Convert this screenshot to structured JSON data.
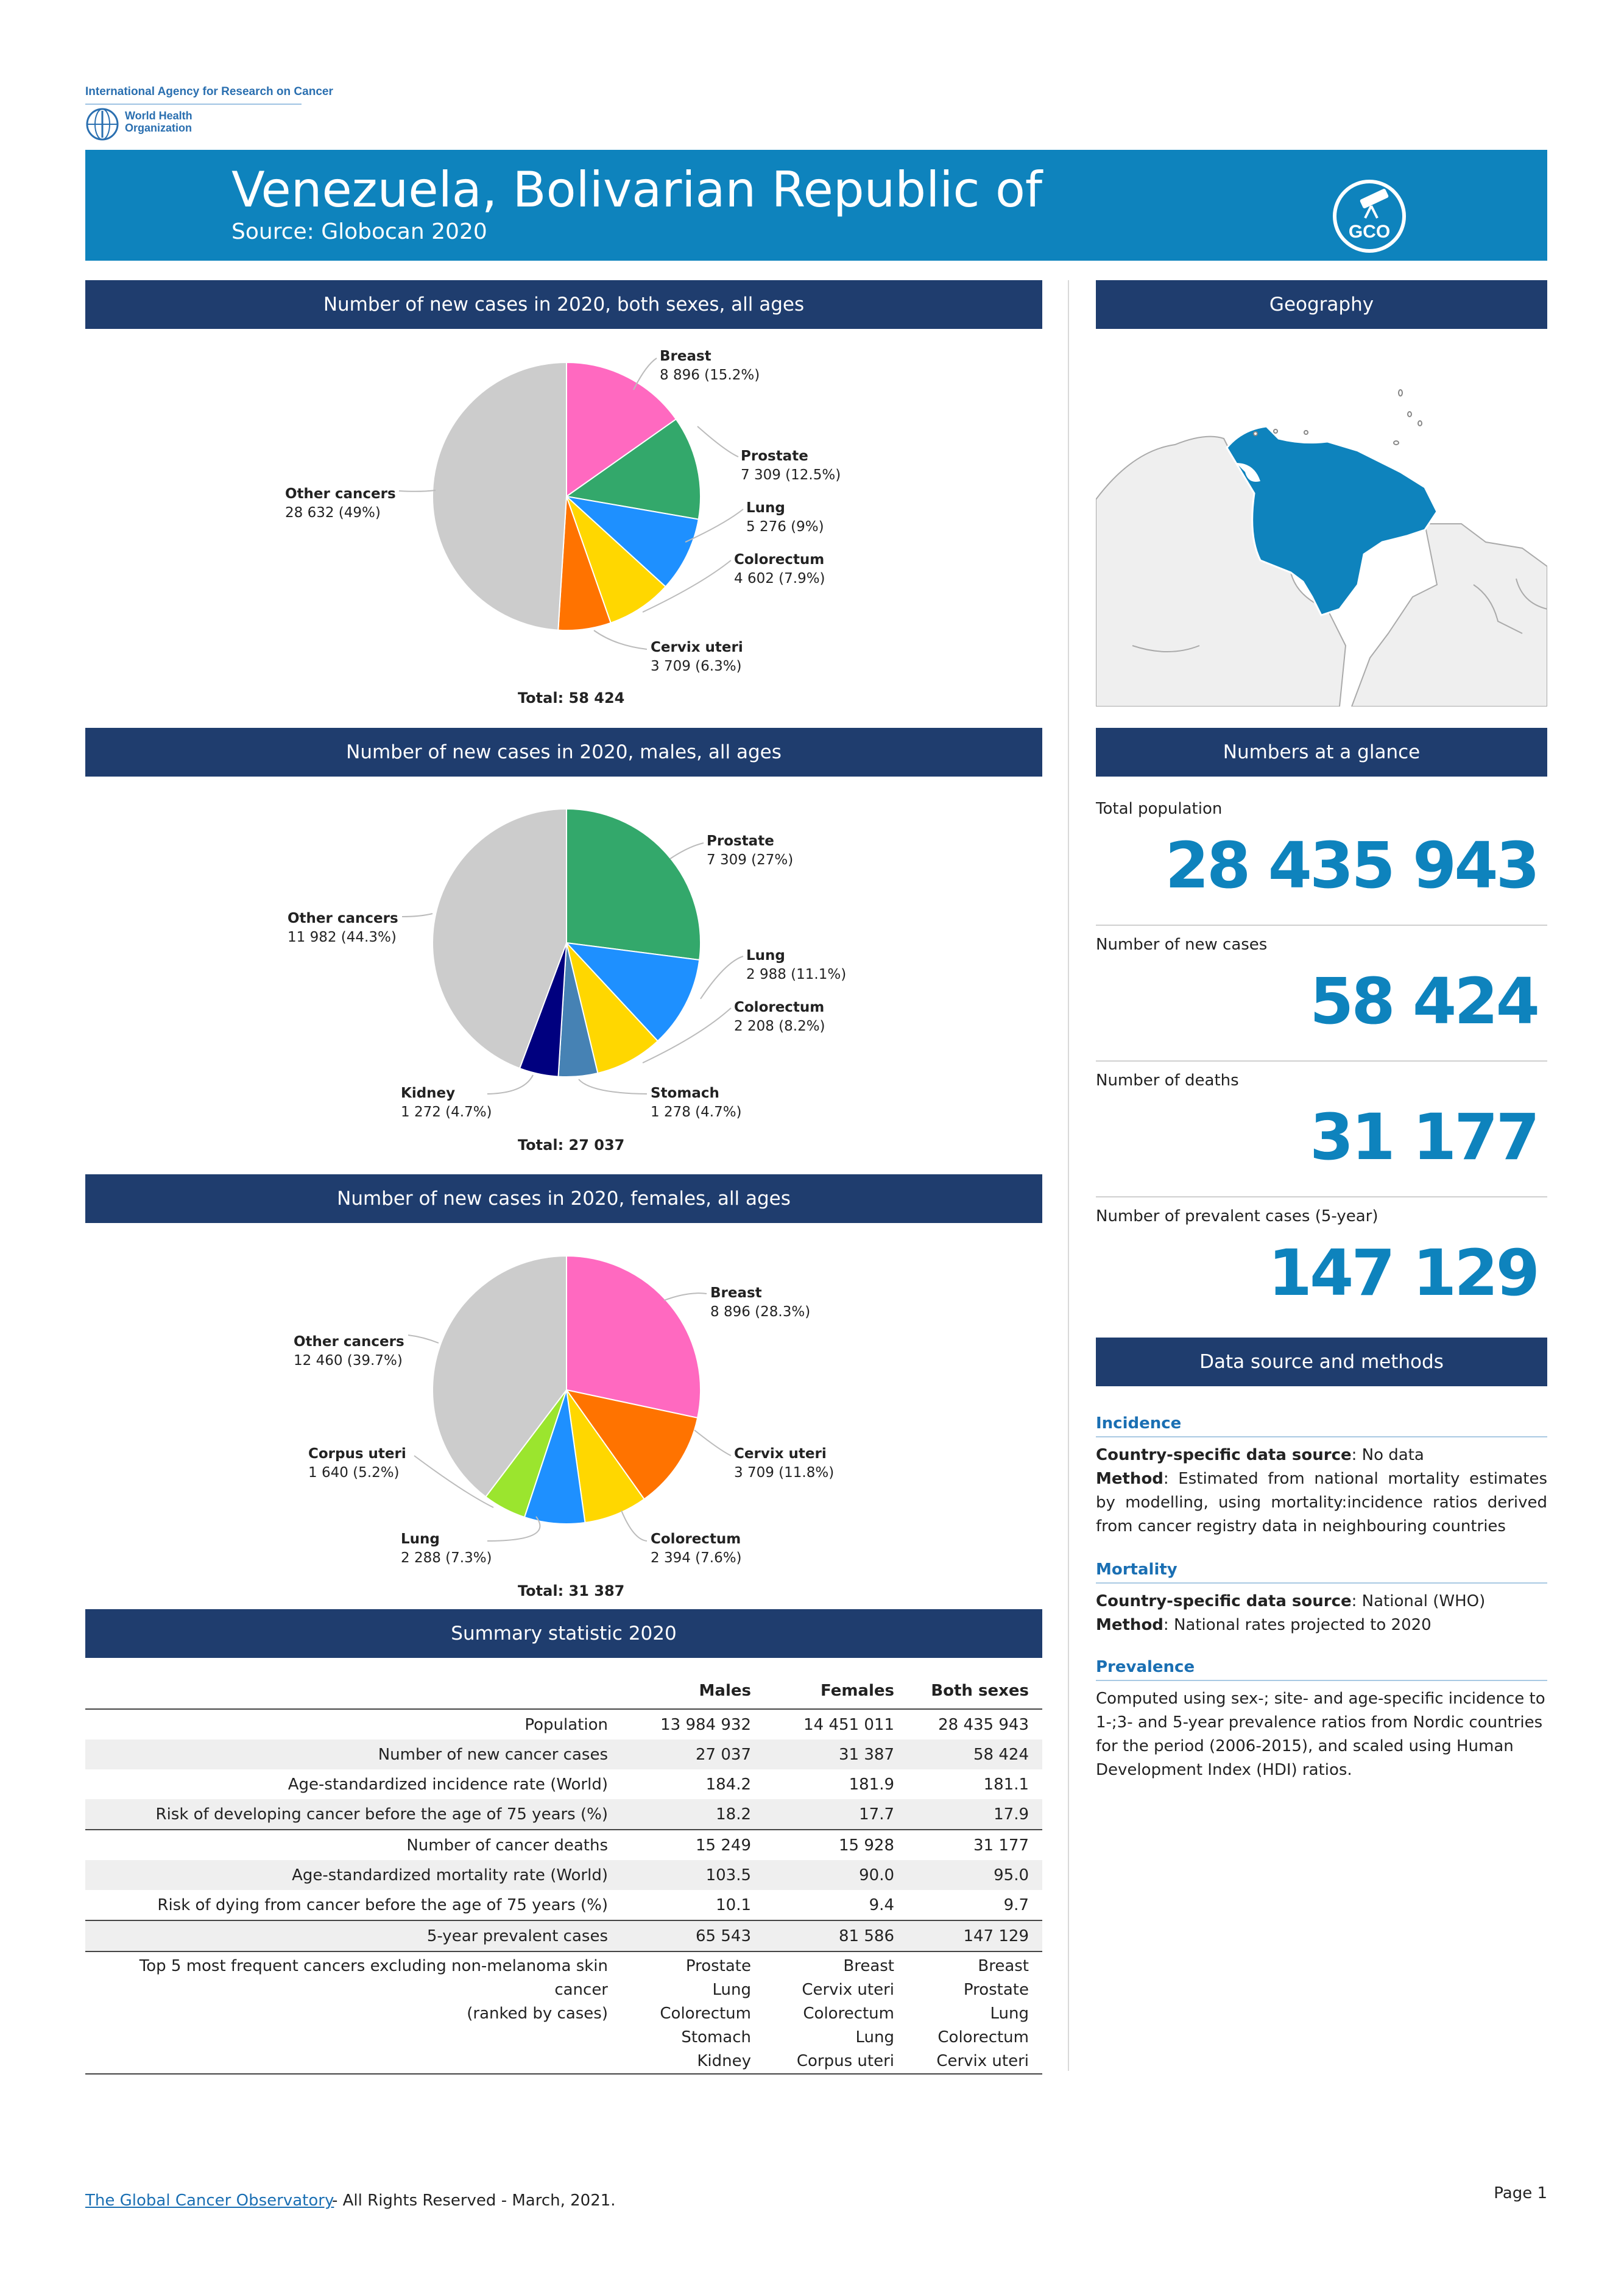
{
  "logos": {
    "iarc": "International Agency for Research on Cancer",
    "who_line1": "World Health",
    "who_line2": "Organization",
    "gco_logo_text": "GCO"
  },
  "header": {
    "title": "Venezuela, Bolivarian Republic of",
    "source": "Source: Globocan 2020"
  },
  "sections": {
    "both": "Number of new cases in 2020, both sexes, all ages",
    "males": "Number of new cases in 2020, males, all ages",
    "females": "Number of new cases in 2020, females, all ages",
    "summary": "Summary statistic 2020",
    "geography": "Geography",
    "glance": "Numbers at a glance",
    "datasource": "Data source and methods"
  },
  "chart_data": [
    {
      "type": "pie",
      "title": "Number of new cases in 2020, both sexes, all ages",
      "slices": [
        {
          "name": "Breast",
          "value": 8896,
          "percent": "15.2%",
          "label": "8 896 (15.2%)",
          "color": "#ff69c0"
        },
        {
          "name": "Prostate",
          "value": 7309,
          "percent": "12.5%",
          "label": "7 309 (12.5%)",
          "color": "#33a86b"
        },
        {
          "name": "Lung",
          "value": 5276,
          "percent": "9%",
          "label": "5 276 (9%)",
          "color": "#1e90ff"
        },
        {
          "name": "Colorectum",
          "value": 4602,
          "percent": "7.9%",
          "label": "4 602 (7.9%)",
          "color": "#ffd700"
        },
        {
          "name": "Cervix uteri",
          "value": 3709,
          "percent": "6.3%",
          "label": "3 709 (6.3%)",
          "color": "#ff7300"
        },
        {
          "name": "Other cancers",
          "value": 28632,
          "percent": "49%",
          "label": "28 632 (49%)",
          "color": "#cccccc"
        }
      ],
      "total": "Total: 58 424"
    },
    {
      "type": "pie",
      "title": "Number of new cases in 2020, males, all ages",
      "slices": [
        {
          "name": "Prostate",
          "value": 7309,
          "percent": "27%",
          "label": "7 309 (27%)",
          "color": "#33a86b"
        },
        {
          "name": "Lung",
          "value": 2988,
          "percent": "11.1%",
          "label": "2 988 (11.1%)",
          "color": "#1e90ff"
        },
        {
          "name": "Colorectum",
          "value": 2208,
          "percent": "8.2%",
          "label": "2 208 (8.2%)",
          "color": "#ffd700"
        },
        {
          "name": "Stomach",
          "value": 1278,
          "percent": "4.7%",
          "label": "1 278 (4.7%)",
          "color": "#4682b4"
        },
        {
          "name": "Kidney",
          "value": 1272,
          "percent": "4.7%",
          "label": "1 272 (4.7%)",
          "color": "#00007f"
        },
        {
          "name": "Other cancers",
          "value": 11982,
          "percent": "44.3%",
          "label": "11 982 (44.3%)",
          "color": "#cccccc"
        }
      ],
      "total": "Total: 27 037"
    },
    {
      "type": "pie",
      "title": "Number of new cases in 2020, females, all ages",
      "slices": [
        {
          "name": "Breast",
          "value": 8896,
          "percent": "28.3%",
          "label": "8 896 (28.3%)",
          "color": "#ff69c0"
        },
        {
          "name": "Cervix uteri",
          "value": 3709,
          "percent": "11.8%",
          "label": "3 709 (11.8%)",
          "color": "#ff7300"
        },
        {
          "name": "Colorectum",
          "value": 2394,
          "percent": "7.6%",
          "label": "2 394 (7.6%)",
          "color": "#ffd700"
        },
        {
          "name": "Lung",
          "value": 2288,
          "percent": "7.3%",
          "label": "2 288 (7.3%)",
          "color": "#1e90ff"
        },
        {
          "name": "Corpus uteri",
          "value": 1640,
          "percent": "5.2%",
          "label": "1 640 (5.2%)",
          "color": "#9be52e"
        },
        {
          "name": "Other cancers",
          "value": 12460,
          "percent": "39.7%",
          "label": "12 460 (39.7%)",
          "color": "#cccccc"
        }
      ],
      "total": "Total: 31 387"
    }
  ],
  "glance": [
    {
      "title": "Total population",
      "value": "28 435 943"
    },
    {
      "title": "Number of new cases",
      "value": "58 424"
    },
    {
      "title": "Number of deaths",
      "value": "31 177"
    },
    {
      "title": "Number of prevalent cases (5-year)",
      "value": "147 129"
    }
  ],
  "datasource": {
    "incidence": {
      "heading": "Incidence",
      "src_label": "Country-specific data source",
      "src_value": ": No data",
      "method_label": "Method",
      "method_value": ": Estimated from national mortality estimates by modelling, using mortality:incidence ratios derived from cancer registry data in neighbouring countries"
    },
    "mortality": {
      "heading": "Mortality",
      "src_label": "Country-specific data source",
      "src_value": ": National (WHO)",
      "method_label": "Method",
      "method_value": ": National rates projected to 2020"
    },
    "prevalence": {
      "heading": "Prevalence",
      "text": "Computed using sex-; site- and age-specific incidence to 1-;3- and 5-year prevalence ratios from Nordic countries for the period (2006-2015), and scaled using Human Development Index (HDI) ratios."
    }
  },
  "summary": {
    "headers": [
      "",
      "Males",
      "Females",
      "Both sexes"
    ],
    "rows": [
      [
        "Population",
        "13 984 932",
        "14 451 011",
        "28 435 943"
      ],
      [
        "Number of new cancer cases",
        "27 037",
        "31 387",
        "58 424"
      ],
      [
        "Age-standardized incidence rate (World)",
        "184.2",
        "181.9",
        "181.1"
      ],
      [
        "Risk of developing cancer before the age of 75 years (%)",
        "18.2",
        "17.7",
        "17.9"
      ],
      [
        "Number of cancer deaths",
        "15 249",
        "15 928",
        "31 177"
      ],
      [
        "Age-standardized mortality rate (World)",
        "103.5",
        "90.0",
        "95.0"
      ],
      [
        "Risk of dying from cancer before the age of 75 years (%)",
        "10.1",
        "9.4",
        "9.7"
      ],
      [
        "5-year prevalent cases",
        "65 543",
        "81 586",
        "147 129"
      ]
    ],
    "top5_label_line1": "Top 5 most frequent cancers excluding non-melanoma skin cancer",
    "top5_label_line2": "(ranked by cases)",
    "top5_males": [
      "Prostate",
      "Lung",
      "Colorectum",
      "Stomach",
      "Kidney"
    ],
    "top5_females": [
      "Breast",
      "Cervix uteri",
      "Colorectum",
      "Lung",
      "Corpus uteri"
    ],
    "top5_both": [
      "Breast",
      "Prostate",
      "Lung",
      "Colorectum",
      "Cervix uteri"
    ]
  },
  "footer": {
    "link": "The Global Cancer Observatory ",
    "rest": "- All Rights Reserved - March, 2021.",
    "page": "Page 1"
  }
}
